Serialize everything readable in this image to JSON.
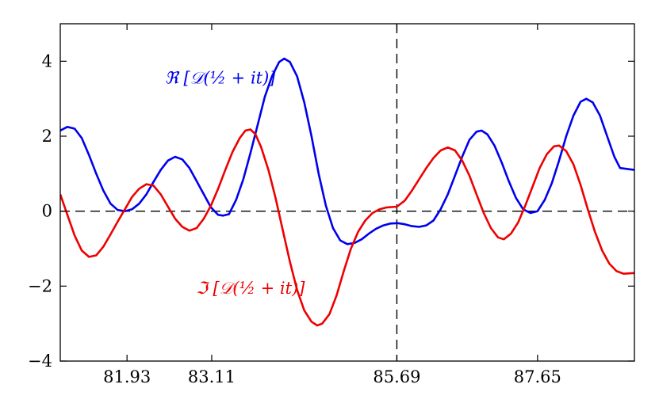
{
  "chart_data": {
    "type": "line",
    "xlim": [
      81.0,
      89.0
    ],
    "ylim": [
      -4,
      5
    ],
    "x_ticks": [
      81.93,
      83.11,
      85.69,
      87.65
    ],
    "x_tick_labels": [
      "81.93",
      "83.11",
      "85.69",
      "87.65"
    ],
    "y_ticks": [
      -4,
      -2,
      0,
      2,
      4
    ],
    "y_tick_labels": [
      "−4",
      "−2",
      "0",
      "2",
      "4"
    ],
    "reference_lines": [
      {
        "orientation": "horizontal",
        "value": 0,
        "style": "dashed",
        "color": "#000000"
      },
      {
        "orientation": "vertical",
        "value": 85.69,
        "style": "dashed",
        "color": "#000000"
      }
    ],
    "grid": false,
    "series": [
      {
        "name": "ℜ [𝒟(½ + it)]",
        "color": "#0000ee",
        "points": [
          [
            81.0,
            2.15
          ],
          [
            81.1,
            2.25
          ],
          [
            81.2,
            2.2
          ],
          [
            81.3,
            1.95
          ],
          [
            81.4,
            1.5
          ],
          [
            81.5,
            1.0
          ],
          [
            81.6,
            0.55
          ],
          [
            81.7,
            0.2
          ],
          [
            81.8,
            0.03
          ],
          [
            81.9,
            0.0
          ],
          [
            82.0,
            0.05
          ],
          [
            82.1,
            0.2
          ],
          [
            82.2,
            0.45
          ],
          [
            82.3,
            0.78
          ],
          [
            82.4,
            1.1
          ],
          [
            82.5,
            1.35
          ],
          [
            82.6,
            1.45
          ],
          [
            82.7,
            1.38
          ],
          [
            82.8,
            1.15
          ],
          [
            82.9,
            0.8
          ],
          [
            83.0,
            0.45
          ],
          [
            83.1,
            0.1
          ],
          [
            83.2,
            -0.1
          ],
          [
            83.27,
            -0.12
          ],
          [
            83.35,
            -0.08
          ],
          [
            83.45,
            0.3
          ],
          [
            83.55,
            0.85
          ],
          [
            83.65,
            1.55
          ],
          [
            83.75,
            2.3
          ],
          [
            83.85,
            3.05
          ],
          [
            83.95,
            3.6
          ],
          [
            84.05,
            3.98
          ],
          [
            84.12,
            4.07
          ],
          [
            84.2,
            3.98
          ],
          [
            84.3,
            3.6
          ],
          [
            84.4,
            2.9
          ],
          [
            84.5,
            2.0
          ],
          [
            84.6,
            1.0
          ],
          [
            84.7,
            0.15
          ],
          [
            84.8,
            -0.45
          ],
          [
            84.9,
            -0.78
          ],
          [
            85.0,
            -0.88
          ],
          [
            85.1,
            -0.85
          ],
          [
            85.2,
            -0.75
          ],
          [
            85.3,
            -0.6
          ],
          [
            85.4,
            -0.47
          ],
          [
            85.5,
            -0.38
          ],
          [
            85.6,
            -0.33
          ],
          [
            85.7,
            -0.32
          ],
          [
            85.8,
            -0.35
          ],
          [
            85.9,
            -0.4
          ],
          [
            86.0,
            -0.42
          ],
          [
            86.1,
            -0.38
          ],
          [
            86.2,
            -0.25
          ],
          [
            86.3,
            0.05
          ],
          [
            86.4,
            0.45
          ],
          [
            86.5,
            0.95
          ],
          [
            86.6,
            1.45
          ],
          [
            86.7,
            1.9
          ],
          [
            86.8,
            2.12
          ],
          [
            86.87,
            2.15
          ],
          [
            86.95,
            2.05
          ],
          [
            87.05,
            1.75
          ],
          [
            87.15,
            1.3
          ],
          [
            87.25,
            0.8
          ],
          [
            87.35,
            0.35
          ],
          [
            87.45,
            0.05
          ],
          [
            87.55,
            -0.05
          ],
          [
            87.65,
            0.0
          ],
          [
            87.75,
            0.3
          ],
          [
            87.85,
            0.75
          ],
          [
            87.95,
            1.35
          ],
          [
            88.05,
            2.0
          ],
          [
            88.15,
            2.55
          ],
          [
            88.25,
            2.92
          ],
          [
            88.33,
            3.0
          ],
          [
            88.42,
            2.9
          ],
          [
            88.52,
            2.55
          ],
          [
            88.62,
            2.0
          ],
          [
            88.72,
            1.45
          ],
          [
            88.8,
            1.15
          ],
          [
            89.0,
            1.1
          ]
        ]
      },
      {
        "name": "ℑ [𝒟(½ + it)]",
        "color": "#ee0000",
        "points": [
          [
            81.0,
            0.45
          ],
          [
            81.1,
            -0.1
          ],
          [
            81.2,
            -0.65
          ],
          [
            81.3,
            -1.05
          ],
          [
            81.4,
            -1.22
          ],
          [
            81.5,
            -1.18
          ],
          [
            81.6,
            -0.95
          ],
          [
            81.7,
            -0.62
          ],
          [
            81.8,
            -0.28
          ],
          [
            81.9,
            0.05
          ],
          [
            82.0,
            0.38
          ],
          [
            82.1,
            0.6
          ],
          [
            82.2,
            0.72
          ],
          [
            82.3,
            0.68
          ],
          [
            82.4,
            0.45
          ],
          [
            82.5,
            0.12
          ],
          [
            82.6,
            -0.2
          ],
          [
            82.7,
            -0.42
          ],
          [
            82.8,
            -0.52
          ],
          [
            82.9,
            -0.45
          ],
          [
            83.0,
            -0.2
          ],
          [
            83.1,
            0.15
          ],
          [
            83.2,
            0.6
          ],
          [
            83.3,
            1.1
          ],
          [
            83.4,
            1.58
          ],
          [
            83.5,
            1.95
          ],
          [
            83.58,
            2.15
          ],
          [
            83.65,
            2.18
          ],
          [
            83.72,
            2.05
          ],
          [
            83.8,
            1.7
          ],
          [
            83.9,
            1.1
          ],
          [
            84.0,
            0.35
          ],
          [
            84.1,
            -0.5
          ],
          [
            84.2,
            -1.35
          ],
          [
            84.3,
            -2.1
          ],
          [
            84.4,
            -2.65
          ],
          [
            84.5,
            -2.95
          ],
          [
            84.58,
            -3.05
          ],
          [
            84.65,
            -3.0
          ],
          [
            84.75,
            -2.75
          ],
          [
            84.85,
            -2.25
          ],
          [
            84.95,
            -1.6
          ],
          [
            85.05,
            -1.0
          ],
          [
            85.15,
            -0.55
          ],
          [
            85.25,
            -0.25
          ],
          [
            85.35,
            -0.05
          ],
          [
            85.45,
            0.05
          ],
          [
            85.55,
            0.1
          ],
          [
            85.69,
            0.12
          ],
          [
            85.8,
            0.28
          ],
          [
            85.9,
            0.55
          ],
          [
            86.0,
            0.85
          ],
          [
            86.1,
            1.15
          ],
          [
            86.2,
            1.42
          ],
          [
            86.3,
            1.62
          ],
          [
            86.4,
            1.7
          ],
          [
            86.5,
            1.62
          ],
          [
            86.6,
            1.35
          ],
          [
            86.7,
            0.95
          ],
          [
            86.8,
            0.45
          ],
          [
            86.9,
            -0.05
          ],
          [
            87.0,
            -0.45
          ],
          [
            87.1,
            -0.7
          ],
          [
            87.18,
            -0.75
          ],
          [
            87.28,
            -0.6
          ],
          [
            87.38,
            -0.3
          ],
          [
            87.48,
            0.15
          ],
          [
            87.58,
            0.65
          ],
          [
            87.68,
            1.15
          ],
          [
            87.78,
            1.52
          ],
          [
            87.88,
            1.73
          ],
          [
            87.95,
            1.75
          ],
          [
            88.05,
            1.6
          ],
          [
            88.15,
            1.25
          ],
          [
            88.25,
            0.7
          ],
          [
            88.35,
            0.05
          ],
          [
            88.45,
            -0.55
          ],
          [
            88.55,
            -1.05
          ],
          [
            88.65,
            -1.4
          ],
          [
            88.75,
            -1.6
          ],
          [
            88.85,
            -1.67
          ],
          [
            89.0,
            -1.65
          ]
        ]
      }
    ],
    "annotations": [
      {
        "text": "ℜ [𝒟(½ + it)]",
        "color": "#0000ee",
        "x": 84.0,
        "y": 3.4,
        "anchor": "end"
      },
      {
        "text": "ℑ [𝒟(½ + it)]",
        "color": "#ee0000",
        "x": 83.65,
        "y": -2.2,
        "anchor": "middle"
      }
    ]
  }
}
